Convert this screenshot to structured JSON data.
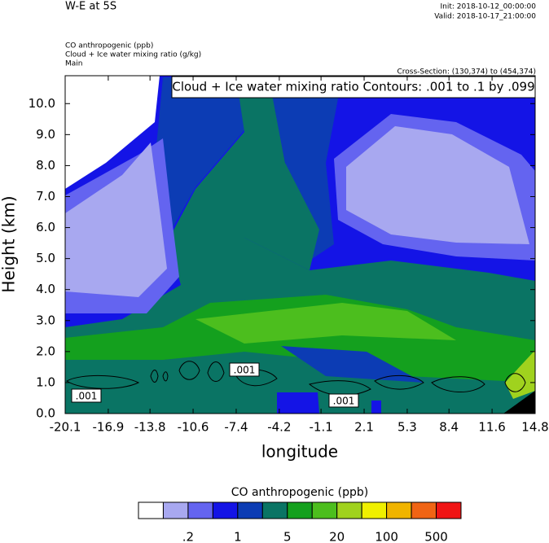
{
  "chart_data": {
    "type": "contour",
    "title": "W-E at 5S",
    "init": "Init: 2018-10-12_00:00:00",
    "valid": "Valid: 2018-10-17_21:00:00",
    "field_labels": [
      "CO anthropogenic   (ppb)",
      "Cloud + Ice water mixing ratio   (g/kg)",
      "Main"
    ],
    "cross_section": "Cross-Section: (130,374) to (454,374)",
    "contour_info": "Cloud + Ice water mixing ratio Contours: .001 to .1 by .099",
    "contour_labels": [
      ".001",
      ".001",
      ".001"
    ],
    "x_label": "longitude",
    "y_label": "Height (km)",
    "xlim": [
      -20.1,
      14.8
    ],
    "xticks": [
      -20.1,
      -16.9,
      -13.8,
      -10.6,
      -7.4,
      -4.2,
      -1.1,
      2.1,
      5.3,
      8.4,
      11.6,
      14.8
    ],
    "ylim": [
      0,
      10.9
    ],
    "yticks": [
      {
        "value": 0,
        "label": "0.0"
      },
      {
        "value": 1,
        "label": "1.0"
      },
      {
        "value": 2,
        "label": "2.0"
      },
      {
        "value": 3,
        "label": "3.0"
      },
      {
        "value": 4,
        "label": "4.0"
      },
      {
        "value": 5,
        "label": "5.0"
      },
      {
        "value": 6,
        "label": "6.0"
      },
      {
        "value": 7,
        "label": "7.0"
      },
      {
        "value": 8,
        "label": "8.0"
      },
      {
        "value": 9,
        "label": "9.0"
      },
      {
        "value": 10,
        "label": "10.0"
      }
    ],
    "colorbar": {
      "title": "CO anthropogenic  (ppb)",
      "colors": [
        "#ffffff",
        "#a8a8f0",
        "#6464f0",
        "#1414e6",
        "#0c3cb4",
        "#0a7464",
        "#14a01e",
        "#4cbe1e",
        "#a0d21e",
        "#f0f000",
        "#f0b400",
        "#f06414",
        "#f01414"
      ],
      "ticks": [
        {
          "value": 0.2,
          "label": ".2"
        },
        1,
        5,
        20,
        100,
        500
      ]
    }
  }
}
